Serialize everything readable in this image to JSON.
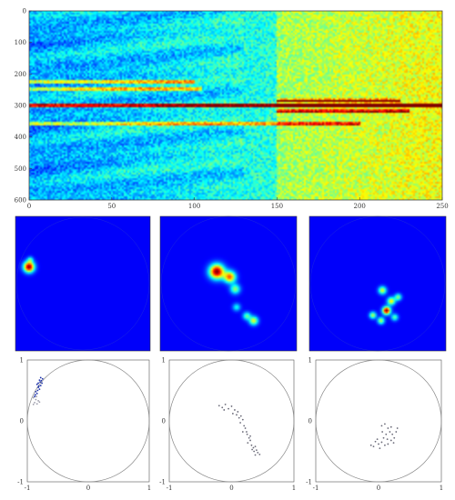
{
  "chart_data": [
    {
      "type": "heatmap",
      "panel": "spectrogram",
      "xlim": [
        0,
        250
      ],
      "ylim": [
        0,
        600
      ],
      "y_inverted": true,
      "x_ticks": [
        "0",
        "50",
        "100",
        "150",
        "200",
        "250"
      ],
      "y_ticks": [
        "0",
        "100",
        "200",
        "300",
        "400",
        "500",
        "600"
      ],
      "colormap": "jet",
      "grid": false,
      "features": [
        {
          "name": "",
          "y": 300,
          "x_range": [
            0,
            250
          ],
          "intensity": 1.0
        },
        {
          "name": "",
          "y": 225,
          "x_range": [
            0,
            100
          ],
          "intensity": 0.55
        },
        {
          "name": "",
          "y": 248,
          "x_range": [
            0,
            105
          ],
          "intensity": 0.5
        },
        {
          "name": "",
          "y": 285,
          "x_range": [
            150,
            225
          ],
          "intensity": 0.6
        },
        {
          "name": "",
          "y": 318,
          "x_range": [
            150,
            230
          ],
          "intensity": 0.55
        },
        {
          "name": "",
          "y": 358,
          "x_range": [
            0,
            200
          ],
          "intensity": 0.5
        }
      ]
    },
    {
      "type": "heatmap",
      "panel": "disk-1",
      "domain": "unit-disk",
      "colormap": "jet",
      "blobs": [
        {
          "x": -0.8,
          "y": 0.25,
          "intensity": 1.0,
          "spread": 0.055
        },
        {
          "x": -0.78,
          "y": 0.36,
          "intensity": 0.3,
          "spread": 0.03
        }
      ]
    },
    {
      "type": "heatmap",
      "panel": "disk-2",
      "domain": "unit-disk",
      "colormap": "jet",
      "blobs": [
        {
          "x": -0.17,
          "y": 0.18,
          "intensity": 1.0,
          "spread": 0.075
        },
        {
          "x": 0.02,
          "y": 0.1,
          "intensity": 0.75,
          "spread": 0.06
        },
        {
          "x": 0.1,
          "y": -0.08,
          "intensity": 0.45,
          "spread": 0.05
        },
        {
          "x": 0.12,
          "y": -0.35,
          "intensity": 0.3,
          "spread": 0.04
        },
        {
          "x": 0.37,
          "y": -0.55,
          "intensity": 0.55,
          "spread": 0.045
        },
        {
          "x": 0.27,
          "y": -0.48,
          "intensity": 0.4,
          "spread": 0.04
        }
      ]
    },
    {
      "type": "heatmap",
      "panel": "disk-3",
      "domain": "unit-disk",
      "colormap": "jet",
      "blobs": [
        {
          "x": 0.07,
          "y": -0.1,
          "intensity": 0.55,
          "spread": 0.04
        },
        {
          "x": 0.2,
          "y": -0.26,
          "intensity": 0.6,
          "spread": 0.04
        },
        {
          "x": 0.13,
          "y": -0.4,
          "intensity": 1.0,
          "spread": 0.04
        },
        {
          "x": -0.07,
          "y": -0.47,
          "intensity": 0.5,
          "spread": 0.035
        },
        {
          "x": 0.05,
          "y": -0.55,
          "intensity": 0.5,
          "spread": 0.035
        },
        {
          "x": 0.3,
          "y": -0.2,
          "intensity": 0.45,
          "spread": 0.035
        },
        {
          "x": 0.25,
          "y": -0.5,
          "intensity": 0.4,
          "spread": 0.035
        }
      ]
    },
    {
      "type": "scatter",
      "panel": "scatter-1",
      "xlim": [
        -1,
        1
      ],
      "ylim": [
        -1,
        1
      ],
      "x_ticks": [
        "-1",
        "0",
        "1"
      ],
      "y_ticks": [
        "1",
        "0",
        "-1"
      ],
      "circle_radius": 1,
      "series": [
        {
          "color": "#1a2fa8",
          "points": [
            [
              -0.8,
              0.52
            ],
            [
              -0.82,
              0.55
            ],
            [
              -0.78,
              0.58
            ],
            [
              -0.76,
              0.62
            ],
            [
              -0.79,
              0.64
            ],
            [
              -0.84,
              0.6
            ],
            [
              -0.81,
              0.57
            ],
            [
              -0.83,
              0.5
            ],
            [
              -0.86,
              0.48
            ],
            [
              -0.77,
              0.66
            ],
            [
              -0.75,
              0.69
            ],
            [
              -0.78,
              0.71
            ],
            [
              -0.8,
              0.67
            ],
            [
              -0.82,
              0.62
            ],
            [
              -0.84,
              0.45
            ],
            [
              -0.87,
              0.43
            ],
            [
              -0.88,
              0.4
            ]
          ]
        },
        {
          "color": "#9a9aa8",
          "points": [
            [
              -0.85,
              0.4
            ],
            [
              -0.9,
              0.38
            ],
            [
              -0.86,
              0.35
            ],
            [
              -0.82,
              0.33
            ],
            [
              -0.88,
              0.3
            ],
            [
              -0.84,
              0.28
            ],
            [
              -0.9,
              0.27
            ],
            [
              -0.8,
              0.31
            ]
          ]
        }
      ]
    },
    {
      "type": "scatter",
      "panel": "scatter-2",
      "xlim": [
        -1,
        1
      ],
      "ylim": [
        -1,
        1
      ],
      "x_ticks": [
        "-1",
        "0",
        "1"
      ],
      "y_ticks": [
        "1",
        "0",
        "-1"
      ],
      "circle_radius": 1,
      "series": [
        {
          "color": "#6a6a78",
          "points": [
            [
              -0.2,
              0.25
            ],
            [
              -0.15,
              0.22
            ],
            [
              -0.1,
              0.27
            ],
            [
              -0.05,
              0.2
            ],
            [
              0.0,
              0.24
            ],
            [
              0.05,
              0.18
            ],
            [
              0.1,
              0.15
            ],
            [
              0.08,
              0.1
            ],
            [
              0.12,
              0.05
            ],
            [
              0.15,
              0.08
            ],
            [
              0.18,
              0.02
            ],
            [
              0.14,
              -0.03
            ],
            [
              0.2,
              -0.08
            ],
            [
              0.22,
              -0.12
            ],
            [
              0.18,
              -0.18
            ],
            [
              0.25,
              -0.22
            ],
            [
              0.28,
              -0.28
            ],
            [
              0.3,
              -0.32
            ],
            [
              0.26,
              -0.36
            ],
            [
              0.32,
              -0.4
            ],
            [
              0.35,
              -0.44
            ],
            [
              0.38,
              -0.42
            ],
            [
              0.4,
              -0.48
            ],
            [
              0.36,
              -0.5
            ],
            [
              0.42,
              -0.52
            ],
            [
              0.45,
              -0.55
            ],
            [
              0.38,
              -0.56
            ],
            [
              0.33,
              -0.47
            ],
            [
              -0.12,
              0.18
            ],
            [
              0.02,
              0.12
            ],
            [
              0.24,
              -0.18
            ],
            [
              0.3,
              -0.25
            ]
          ]
        }
      ]
    },
    {
      "type": "scatter",
      "panel": "scatter-3",
      "xlim": [
        -1,
        1
      ],
      "ylim": [
        -1,
        1
      ],
      "x_ticks": [
        "-1",
        "0",
        "1"
      ],
      "y_ticks": [
        "1",
        "0",
        "-1"
      ],
      "circle_radius": 1,
      "series": [
        {
          "color": "#6a6a78",
          "points": [
            [
              0.05,
              -0.08
            ],
            [
              0.1,
              -0.05
            ],
            [
              0.15,
              -0.12
            ],
            [
              0.2,
              -0.1
            ],
            [
              0.18,
              -0.18
            ],
            [
              0.22,
              -0.22
            ],
            [
              0.12,
              -0.22
            ],
            [
              0.08,
              -0.28
            ],
            [
              0.14,
              -0.3
            ],
            [
              0.2,
              -0.32
            ],
            [
              0.25,
              -0.28
            ],
            [
              0.05,
              -0.35
            ],
            [
              0.0,
              -0.38
            ],
            [
              -0.05,
              -0.34
            ],
            [
              0.1,
              -0.4
            ],
            [
              0.02,
              -0.45
            ],
            [
              -0.08,
              -0.42
            ],
            [
              -0.12,
              -0.4
            ],
            [
              0.15,
              -0.38
            ],
            [
              0.28,
              -0.18
            ],
            [
              0.3,
              -0.12
            ],
            [
              -0.02,
              -0.3
            ],
            [
              0.06,
              -0.18
            ],
            [
              0.24,
              -0.36
            ]
          ]
        }
      ]
    }
  ]
}
